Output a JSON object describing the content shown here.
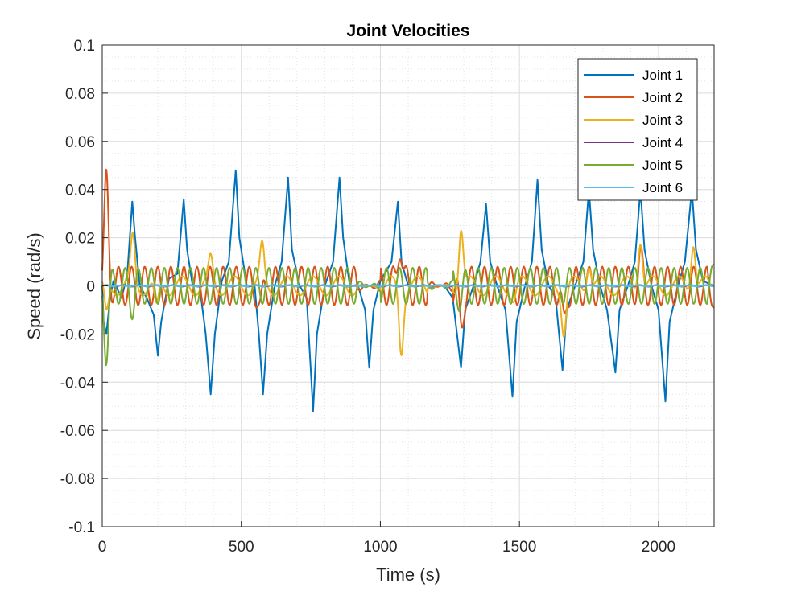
{
  "chart_data": {
    "type": "line",
    "title": "Joint Velocities",
    "xlabel": "Time (s)",
    "ylabel": "Speed (rad/s)",
    "xlim": [
      0,
      2200
    ],
    "ylim": [
      -0.1,
      0.1
    ],
    "x_ticks": [
      0,
      500,
      1000,
      1500,
      2000
    ],
    "x_tick_labels": [
      "0",
      "500",
      "1000",
      "1500",
      "2000"
    ],
    "y_ticks": [
      0.1,
      0.08,
      0.06,
      0.04,
      0.02,
      0,
      -0.02,
      -0.04,
      -0.06,
      -0.08,
      -0.1
    ],
    "y_tick_labels": [
      "0.1",
      "0.08",
      "0.06",
      "0.04",
      "0.02",
      "0",
      "-0.02",
      "-0.04",
      "-0.06",
      "-0.08",
      "-0.1"
    ],
    "grid": true,
    "minor_grid": true,
    "legend_position": "top-right",
    "series": [
      {
        "name": "Joint 1",
        "color": "#0072BD",
        "points": [
          [
            0,
            0
          ],
          [
            5,
            -0.015
          ],
          [
            15,
            -0.02
          ],
          [
            28,
            -0.005
          ],
          [
            40,
            0.002
          ],
          [
            70,
            -0.005
          ],
          [
            90,
            0.005
          ],
          [
            108,
            0.035
          ],
          [
            118,
            0.02
          ],
          [
            135,
            0.0
          ],
          [
            160,
            -0.005
          ],
          [
            185,
            -0.012
          ],
          [
            200,
            -0.029
          ],
          [
            212,
            -0.015
          ],
          [
            240,
            0.003
          ],
          [
            270,
            0.005
          ],
          [
            293,
            0.036
          ],
          [
            305,
            0.015
          ],
          [
            325,
            0.0
          ],
          [
            350,
            0.0
          ],
          [
            372,
            -0.02
          ],
          [
            390,
            -0.045
          ],
          [
            405,
            -0.02
          ],
          [
            430,
            0.002
          ],
          [
            455,
            0.01
          ],
          [
            480,
            0.048
          ],
          [
            493,
            0.02
          ],
          [
            520,
            0.0
          ],
          [
            548,
            0.0
          ],
          [
            563,
            -0.02
          ],
          [
            578,
            -0.045
          ],
          [
            593,
            -0.02
          ],
          [
            620,
            0.0
          ],
          [
            645,
            0.01
          ],
          [
            668,
            0.045
          ],
          [
            682,
            0.015
          ],
          [
            710,
            0.0
          ],
          [
            735,
            -0.005
          ],
          [
            758,
            -0.052
          ],
          [
            772,
            -0.02
          ],
          [
            800,
            0.0
          ],
          [
            830,
            0.01
          ],
          [
            853,
            0.045
          ],
          [
            866,
            0.02
          ],
          [
            890,
            0.0
          ],
          [
            920,
            0.0
          ],
          [
            945,
            -0.01
          ],
          [
            960,
            -0.034
          ],
          [
            975,
            -0.01
          ],
          [
            1000,
            0.002
          ],
          [
            1040,
            0.01
          ],
          [
            1063,
            0.035
          ],
          [
            1076,
            0.01
          ],
          [
            1100,
            0.0
          ],
          [
            1150,
            0.0
          ],
          [
            1200,
            0.0
          ],
          [
            1230,
            0.0
          ],
          [
            1260,
            -0.005
          ],
          [
            1290,
            -0.034
          ],
          [
            1305,
            -0.01
          ],
          [
            1335,
            0.0
          ],
          [
            1360,
            0.01
          ],
          [
            1380,
            0.034
          ],
          [
            1395,
            0.01
          ],
          [
            1420,
            0.0
          ],
          [
            1450,
            -0.01
          ],
          [
            1475,
            -0.046
          ],
          [
            1490,
            -0.015
          ],
          [
            1520,
            0.0
          ],
          [
            1545,
            0.01
          ],
          [
            1565,
            0.044
          ],
          [
            1580,
            0.015
          ],
          [
            1605,
            0.0
          ],
          [
            1630,
            -0.005
          ],
          [
            1655,
            -0.035
          ],
          [
            1670,
            -0.01
          ],
          [
            1700,
            0.0
          ],
          [
            1730,
            0.01
          ],
          [
            1750,
            0.04
          ],
          [
            1765,
            0.015
          ],
          [
            1790,
            0.0
          ],
          [
            1815,
            -0.01
          ],
          [
            1845,
            -0.036
          ],
          [
            1860,
            -0.01
          ],
          [
            1890,
            0.0
          ],
          [
            1915,
            0.01
          ],
          [
            1935,
            0.04
          ],
          [
            1950,
            0.015
          ],
          [
            1975,
            0.0
          ],
          [
            2000,
            -0.01
          ],
          [
            2025,
            -0.048
          ],
          [
            2040,
            -0.015
          ],
          [
            2070,
            0.0
          ],
          [
            2095,
            0.01
          ],
          [
            2120,
            0.04
          ],
          [
            2135,
            0.015
          ],
          [
            2160,
            0.002
          ],
          [
            2200,
            0.0
          ]
        ]
      },
      {
        "name": "Joint 2",
        "color": "#D95319",
        "amplitude": 0.008,
        "period": 47,
        "phase": 0,
        "spikes": [
          [
            15,
            0.041
          ],
          [
            570,
            -0.01
          ],
          [
            1070,
            0.019
          ],
          [
            1290,
            -0.018
          ],
          [
            1660,
            -0.018
          ],
          [
            1935,
            0.009
          ]
        ],
        "quiet": [
          [
            920,
            1000
          ],
          [
            1170,
            1260
          ]
        ],
        "end_value": -0.009
      },
      {
        "name": "Joint 3",
        "color": "#EDB120",
        "amplitude": 0.004,
        "period": 94,
        "phase": 1.2,
        "spikes": [
          [
            15,
            -0.013
          ],
          [
            110,
            0.019
          ],
          [
            195,
            -0.011
          ],
          [
            390,
            0.01
          ],
          [
            575,
            0.015
          ],
          [
            1075,
            -0.026
          ],
          [
            1290,
            0.025
          ],
          [
            1480,
            -0.005
          ],
          [
            1660,
            -0.018
          ],
          [
            1750,
            0.011
          ],
          [
            1935,
            0.021
          ],
          [
            2125,
            0.02
          ]
        ],
        "quiet": [
          [
            920,
            1000
          ],
          [
            1170,
            1260
          ]
        ],
        "end_value": 0.0
      },
      {
        "name": "Joint 4",
        "color": "#7E2F8E",
        "amplitude": 0.0003,
        "period": 60,
        "phase": 0,
        "spikes": [],
        "quiet": [],
        "end_value": 0.0
      },
      {
        "name": "Joint 5",
        "color": "#77AC30",
        "amplitude": 0.0075,
        "period": 47,
        "phase": 3.14,
        "spikes": [
          [
            15,
            -0.026
          ],
          [
            110,
            -0.007
          ],
          [
            580,
            0.0
          ],
          [
            1290,
            -0.005
          ]
        ],
        "quiet": [
          [
            920,
            1000
          ],
          [
            1170,
            1260
          ]
        ],
        "end_value": 0.009
      },
      {
        "name": "Joint 6",
        "color": "#4DBEEE",
        "amplitude": 0.0002,
        "period": 60,
        "phase": 0.8,
        "spikes": [],
        "quiet": [],
        "end_value": 0.0
      }
    ]
  }
}
